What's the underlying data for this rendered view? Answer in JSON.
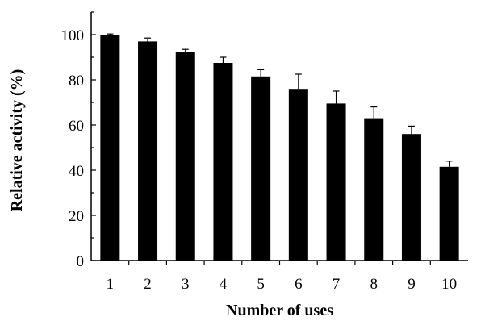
{
  "chart_data": {
    "type": "bar",
    "title": "",
    "xlabel": "Number of uses",
    "ylabel": "Relative activity (%)",
    "categories": [
      "1",
      "2",
      "3",
      "4",
      "5",
      "6",
      "7",
      "8",
      "9",
      "10"
    ],
    "values": [
      100,
      97,
      92.5,
      87.5,
      81.5,
      76,
      69.5,
      63,
      56,
      41.5
    ],
    "error_bars": [
      0.3,
      1.5,
      1,
      2.5,
      3,
      6.5,
      5.5,
      5,
      3.5,
      2.5
    ],
    "ylim": [
      0,
      110
    ],
    "yticks": [
      0,
      20,
      40,
      60,
      80,
      100
    ],
    "grid": false,
    "legend": "none",
    "bar_color": "#000000"
  }
}
